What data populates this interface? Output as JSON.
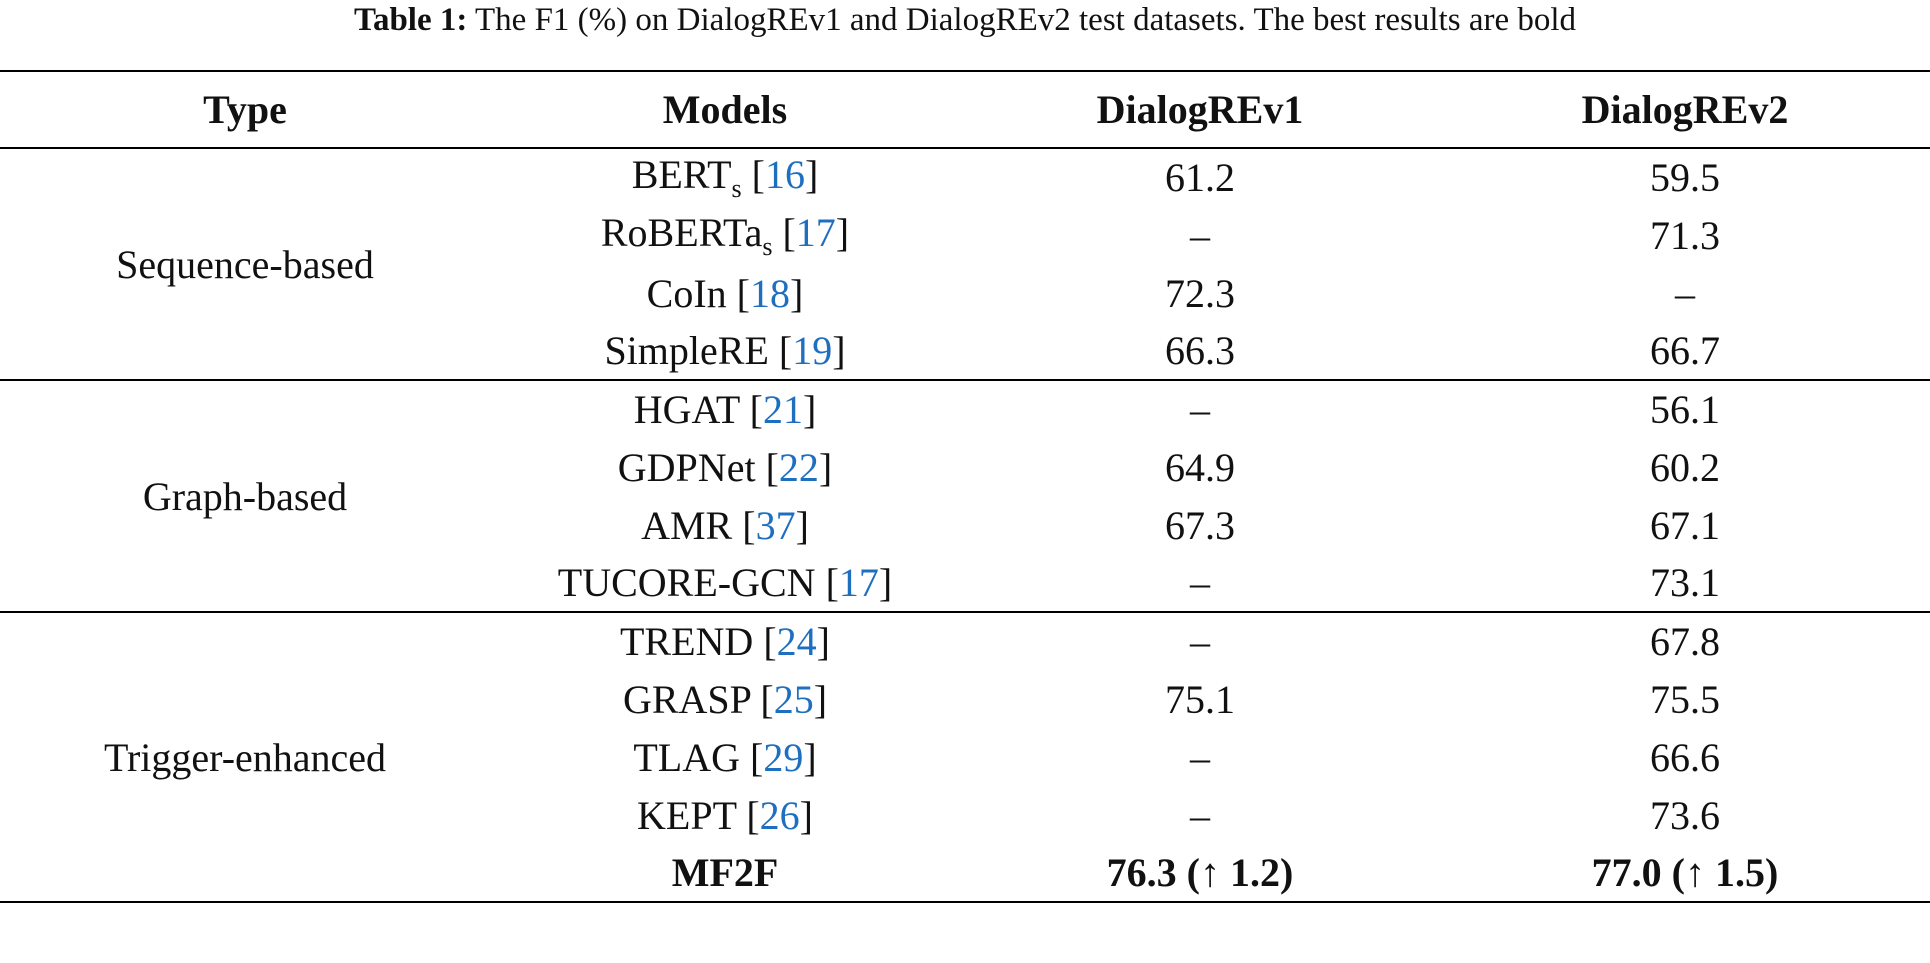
{
  "caption": {
    "label": "Table 1:",
    "text": " The F1 (%) on DialogREv1 and DialogREv2 test datasets. The best results are bold"
  },
  "headers": [
    "Type",
    "Models",
    "DialogREv1",
    "DialogREv2"
  ],
  "groups": [
    {
      "type": "Sequence-based",
      "rows": [
        {
          "model": "BERT",
          "sub": "s",
          "ref": "16",
          "v1": "61.2",
          "v2": "59.5"
        },
        {
          "model": "RoBERTa",
          "sub": "s",
          "ref": "17",
          "v1": "–",
          "v2": "71.3"
        },
        {
          "model": "CoIn",
          "sub": "",
          "ref": "18",
          "v1": "72.3",
          "v2": "–"
        },
        {
          "model": "SimpleRE",
          "sub": "",
          "ref": "19",
          "v1": "66.3",
          "v2": "66.7"
        }
      ]
    },
    {
      "type": "Graph-based",
      "rows": [
        {
          "model": "HGAT",
          "sub": "",
          "ref": "21",
          "v1": "–",
          "v2": "56.1"
        },
        {
          "model": "GDPNet",
          "sub": "",
          "ref": "22",
          "v1": "64.9",
          "v2": "60.2"
        },
        {
          "model": "AMR",
          "sub": "",
          "ref": "37",
          "v1": "67.3",
          "v2": "67.1"
        },
        {
          "model": "TUCORE-GCN",
          "sub": "",
          "ref": "17",
          "v1": "–",
          "v2": "73.1"
        }
      ]
    },
    {
      "type": "Trigger-enhanced",
      "rows": [
        {
          "model": "TREND",
          "sub": "",
          "ref": "24",
          "v1": "–",
          "v2": "67.8"
        },
        {
          "model": "GRASP",
          "sub": "",
          "ref": "25",
          "v1": "75.1",
          "v2": "75.5"
        },
        {
          "model": "TLAG",
          "sub": "",
          "ref": "29",
          "v1": "–",
          "v2": "66.6"
        },
        {
          "model": "KEPT",
          "sub": "",
          "ref": "26",
          "v1": "–",
          "v2": "73.6"
        },
        {
          "model": "MF2F",
          "sub": "",
          "ref": "",
          "v1": "76.3 (↑ 1.2)",
          "v2": "77.0 (↑ 1.5)",
          "bold": true
        }
      ]
    }
  ]
}
